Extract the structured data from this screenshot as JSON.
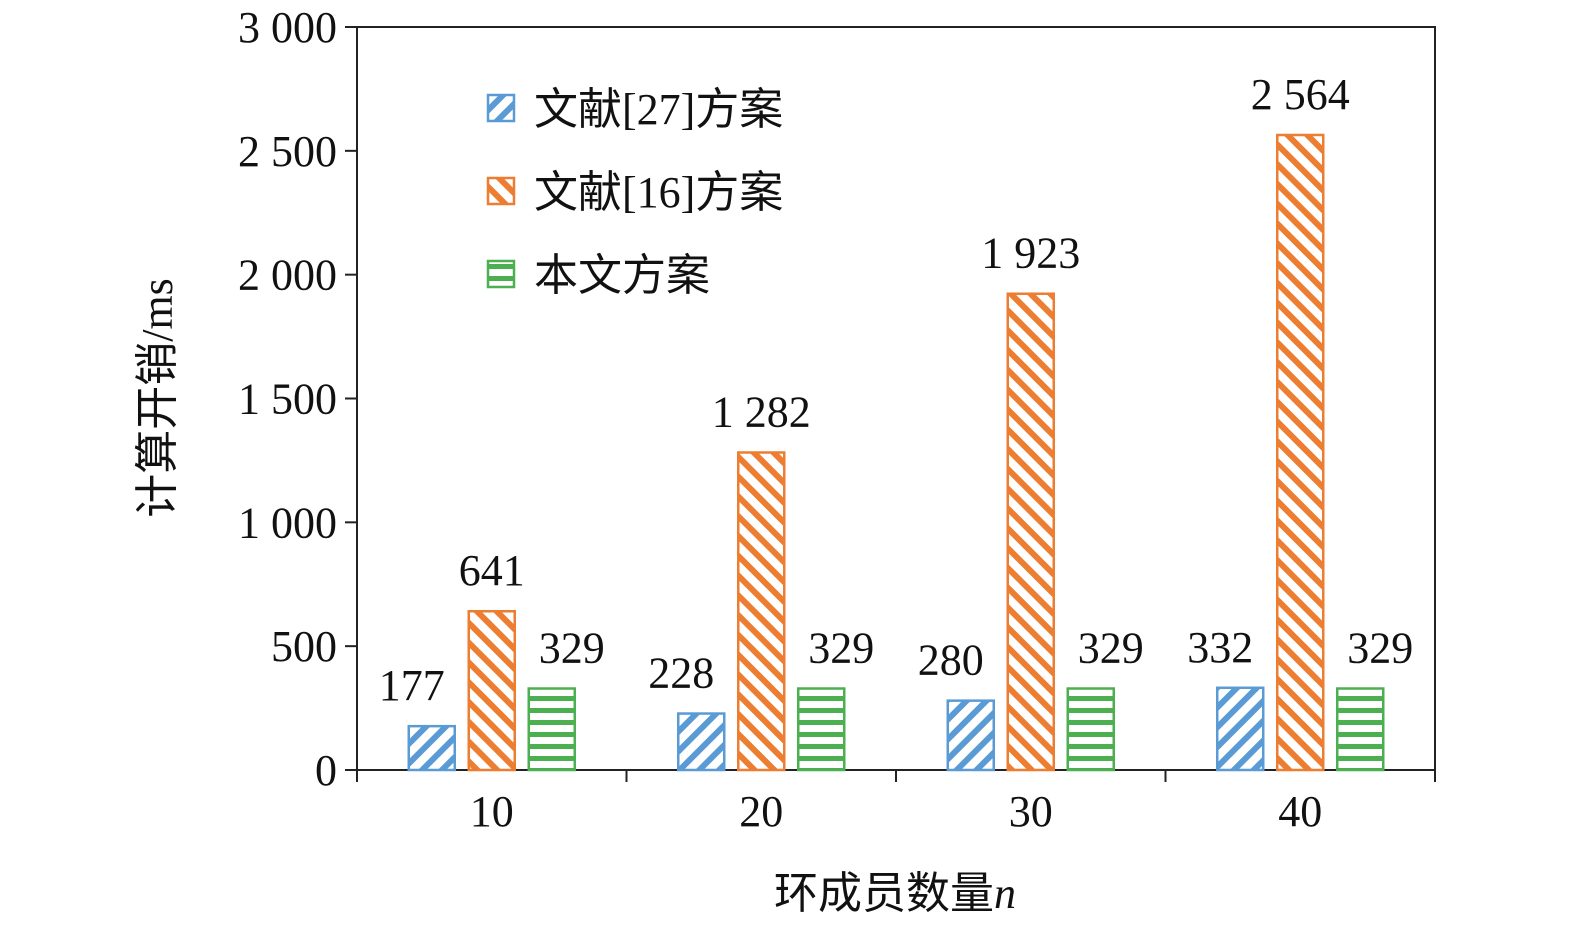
{
  "chart_data": {
    "type": "bar",
    "categories": [
      "10",
      "20",
      "30",
      "40"
    ],
    "series": [
      {
        "name": "文献[27]方案",
        "values": [
          177,
          228,
          280,
          332
        ],
        "labels": [
          "177",
          "228",
          "280",
          "332"
        ],
        "color": "#5b9bd5",
        "pattern": "diagonal-up"
      },
      {
        "name": "文献[16]方案",
        "values": [
          641,
          1282,
          1923,
          2564
        ],
        "labels": [
          "641",
          "1 282",
          "1 923",
          "2 564"
        ],
        "color": "#ed7d31",
        "pattern": "diagonal-down"
      },
      {
        "name": "本文方案",
        "values": [
          329,
          329,
          329,
          329
        ],
        "labels": [
          "329",
          "329",
          "329",
          "329"
        ],
        "color": "#4caf50",
        "pattern": "horizontal"
      }
    ],
    "xlabel": "环成员数量",
    "xlabel_var": "n",
    "ylabel": "计算开销/ms",
    "ylim": [
      0,
      3000
    ],
    "yticks": [
      0,
      500,
      1000,
      1500,
      2000,
      2500,
      3000
    ],
    "ytick_labels": [
      "0",
      "500",
      "1 000",
      "1 500",
      "2 000",
      "2 500",
      "3 000"
    ],
    "grid": false,
    "legend_position": "top-left"
  }
}
